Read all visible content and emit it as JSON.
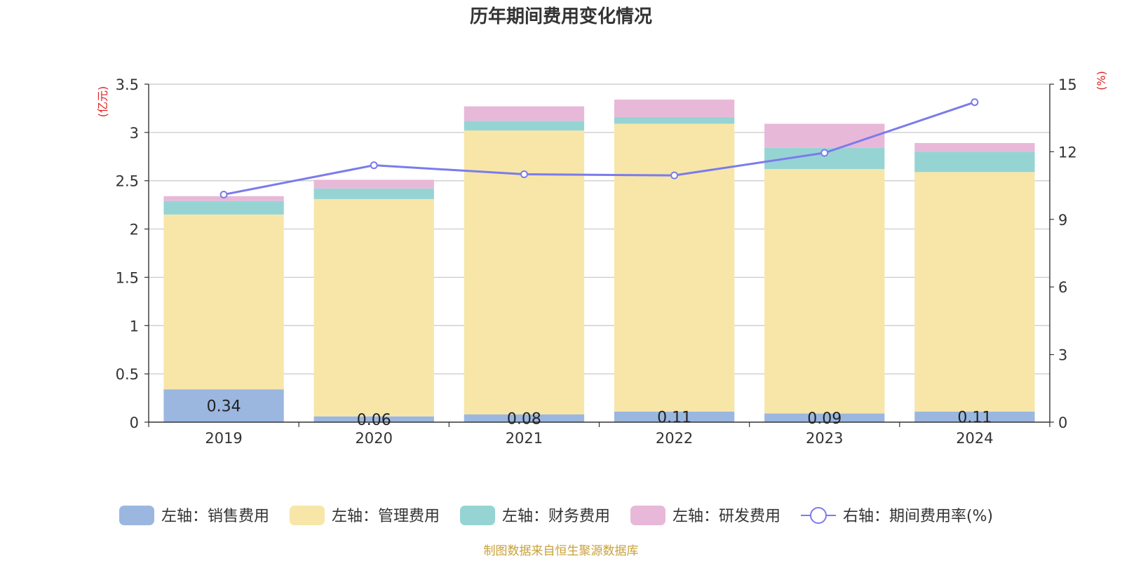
{
  "chart_data": {
    "type": "bar",
    "title": "历年期间费用变化情况",
    "categories": [
      "2019",
      "2020",
      "2021",
      "2022",
      "2023",
      "2024"
    ],
    "left_axis": {
      "unit_label": "(亿元)",
      "ylim": [
        0,
        3.5
      ],
      "ticks": [
        "0",
        "0.5",
        "1",
        "1.5",
        "2",
        "2.5",
        "3",
        "3.5"
      ]
    },
    "right_axis": {
      "unit_label": "(%)",
      "ylim": [
        0,
        15
      ],
      "ticks": [
        "0",
        "3",
        "6",
        "9",
        "12",
        "15"
      ]
    },
    "grid": true,
    "legend_position": "bottom",
    "series": [
      {
        "name": "左轴：销售费用",
        "kind": "bar",
        "axis": "left",
        "color": "#9bb7e0",
        "values": [
          0.34,
          0.06,
          0.08,
          0.11,
          0.09,
          0.11
        ],
        "labels": [
          "0.34",
          "0.06",
          "0.08",
          "0.11",
          "0.09",
          "0.11"
        ]
      },
      {
        "name": "左轴：管理费用",
        "kind": "bar",
        "axis": "left",
        "color": "#f7e6a8",
        "values": [
          1.81,
          2.25,
          2.94,
          2.98,
          2.53,
          2.48
        ]
      },
      {
        "name": "左轴：财务费用",
        "kind": "bar",
        "axis": "left",
        "color": "#96d4d4",
        "values": [
          0.14,
          0.11,
          0.1,
          0.07,
          0.22,
          0.21
        ]
      },
      {
        "name": "左轴：研发费用",
        "kind": "bar",
        "axis": "left",
        "color": "#e8b8d8",
        "values": [
          0.05,
          0.09,
          0.15,
          0.18,
          0.25,
          0.09
        ]
      },
      {
        "name": "右轴：期间费用率(%)",
        "kind": "line",
        "axis": "right",
        "color": "#7b7bec",
        "values": [
          10.1,
          11.4,
          11.0,
          10.95,
          11.95,
          14.2
        ]
      }
    ],
    "source": "制图数据来自恒生聚源数据库"
  }
}
